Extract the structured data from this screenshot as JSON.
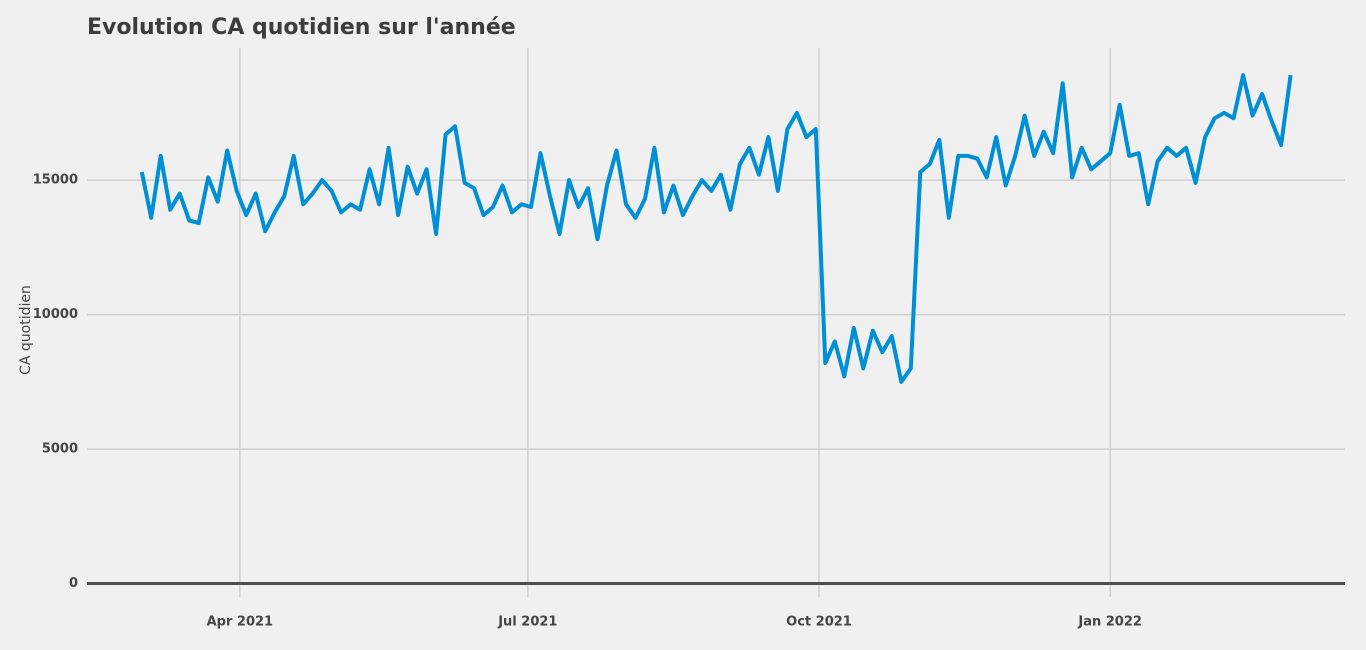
{
  "chart_data": {
    "type": "line",
    "title": "Evolution CA quotidien sur l'année",
    "y_label": "CA quotidien",
    "x": [
      0,
      3,
      6,
      9,
      12,
      15,
      18,
      21,
      24,
      27,
      30,
      33,
      36,
      39,
      42,
      45,
      48,
      51,
      54,
      57,
      60,
      63,
      66,
      69,
      72,
      75,
      78,
      81,
      84,
      87,
      90,
      93,
      96,
      99,
      102,
      105,
      108,
      111,
      114,
      117,
      120,
      123,
      126,
      129,
      132,
      135,
      138,
      141,
      144,
      147,
      150,
      153,
      156,
      159,
      162,
      165,
      168,
      171,
      174,
      177,
      180,
      183,
      186,
      189,
      192,
      195,
      198,
      201,
      204,
      207,
      210,
      213,
      216,
      219,
      222,
      225,
      228,
      231,
      234,
      237,
      240,
      243,
      246,
      249,
      252,
      255,
      258,
      261,
      264,
      267,
      270,
      273,
      276,
      279,
      282,
      285,
      288,
      291,
      294,
      297,
      300,
      303,
      306,
      309,
      312,
      315,
      318,
      321,
      324,
      327,
      330,
      333,
      336,
      339,
      342,
      345,
      348,
      351,
      354,
      357,
      360,
      363
    ],
    "values": [
      15300,
      13600,
      15900,
      13900,
      14500,
      13500,
      13400,
      15100,
      14200,
      16100,
      14600,
      13700,
      14500,
      13100,
      13800,
      14400,
      15900,
      14100,
      14500,
      15000,
      14600,
      13800,
      14100,
      13900,
      15400,
      14100,
      16200,
      13700,
      15500,
      14500,
      15400,
      13000,
      16700,
      17000,
      14900,
      14700,
      13700,
      14000,
      14800,
      13800,
      14100,
      14000,
      16000,
      14400,
      13000,
      15000,
      14000,
      14700,
      12800,
      14800,
      16100,
      14100,
      13600,
      14300,
      16200,
      13800,
      14800,
      13700,
      14400,
      15000,
      14600,
      15200,
      13900,
      15600,
      16200,
      15200,
      16600,
      14600,
      16900,
      17500,
      16600,
      16900,
      8200,
      9000,
      7700,
      9500,
      8000,
      9400,
      8600,
      9200,
      7500,
      8000,
      15300,
      15600,
      16500,
      13600,
      15900,
      15900,
      15800,
      15100,
      16600,
      14800,
      15900,
      17400,
      15900,
      16800,
      16000,
      18600,
      15100,
      16200,
      15400,
      15700,
      16000,
      17800,
      15900,
      16000,
      14100,
      15700,
      16200,
      15900,
      16200,
      14900,
      16600,
      17300,
      17500,
      17300,
      18900,
      17400,
      18200,
      17200,
      16300,
      18900
    ],
    "color": "#008fd5",
    "xlim": [
      -17.3,
      380.2
    ],
    "xticks": [
      {
        "value": 31,
        "label": "Apr 2021"
      },
      {
        "value": 122,
        "label": "Jul 2021"
      },
      {
        "value": 214,
        "label": "Oct 2021"
      },
      {
        "value": 306,
        "label": "Jan 2022"
      }
    ],
    "ylim": [
      -500,
      19800
    ],
    "yticks": [
      0,
      5000,
      10000,
      15000
    ],
    "grid": true
  }
}
